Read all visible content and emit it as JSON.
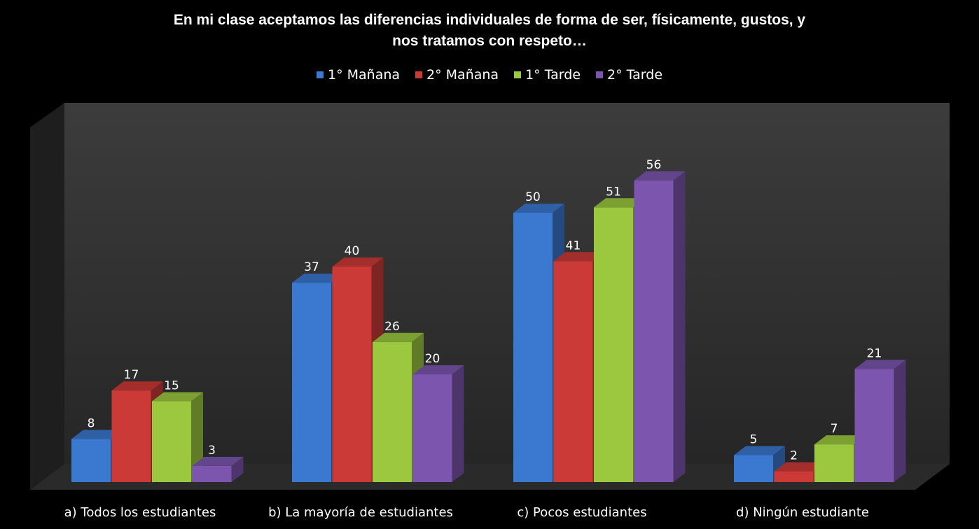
{
  "chart_data": {
    "type": "bar",
    "title_lines": [
      "En mi clase aceptamos las diferencias individuales de forma de ser, físicamente, gustos,  y",
      "nos tratamos con respeto…"
    ],
    "categories": [
      "a) Todos los estudiantes",
      "b) La mayoría de estudiantes",
      "c) Pocos estudiantes",
      "d) Ningún estudiante"
    ],
    "series": [
      {
        "name": "1° Mañana",
        "color": "#3B78CF",
        "values": [
          8,
          37,
          50,
          5
        ]
      },
      {
        "name": "2° Mañana",
        "color": "#CC3A37",
        "values": [
          17,
          40,
          41,
          2
        ]
      },
      {
        "name": "1° Tarde",
        "color": "#9BC83E",
        "values": [
          15,
          26,
          51,
          7
        ]
      },
      {
        "name": "2° Tarde",
        "color": "#7C56AE",
        "values": [
          3,
          20,
          56,
          21
        ]
      }
    ],
    "xlabel": "",
    "ylabel": "",
    "ylim": [
      0,
      60
    ],
    "grid": false,
    "legend_position": "top",
    "style": "3d-clustered-column",
    "background": "#000000"
  }
}
